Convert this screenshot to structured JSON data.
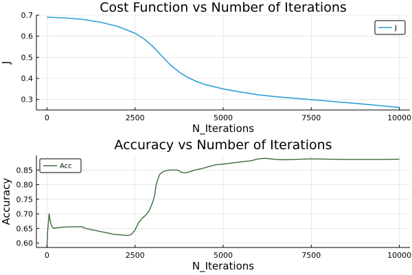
{
  "chart_data": [
    {
      "type": "line",
      "title": "Cost Function vs Number of Iterations",
      "xlabel": "N_Iterations",
      "ylabel": "J",
      "xlim": [
        -300,
        10300
      ],
      "ylim": [
        0.25,
        0.7
      ],
      "x_ticks": [
        0,
        2500,
        5000,
        7500,
        10000
      ],
      "x_tick_labels": [
        "0",
        "2500",
        "5000",
        "7500",
        "10000"
      ],
      "y_ticks": [
        0.3,
        0.4,
        0.5,
        0.6,
        0.7
      ],
      "y_tick_labels": [
        "0.3",
        "0.4",
        "0.5",
        "0.6",
        "0.7"
      ],
      "grid": true,
      "legend": "top-right",
      "series": [
        {
          "name": "J",
          "color": "#2c9fd6",
          "x": [
            0,
            500,
            1000,
            1500,
            2000,
            2500,
            2750,
            3000,
            3250,
            3500,
            3750,
            4000,
            4250,
            4500,
            5000,
            5500,
            6000,
            6500,
            7000,
            7500,
            8000,
            8500,
            9000,
            9500,
            10000
          ],
          "y": [
            0.69,
            0.687,
            0.68,
            0.667,
            0.647,
            0.614,
            0.588,
            0.552,
            0.508,
            0.464,
            0.43,
            0.404,
            0.385,
            0.37,
            0.35,
            0.335,
            0.322,
            0.313,
            0.306,
            0.299,
            0.292,
            0.285,
            0.278,
            0.27,
            0.262
          ]
        }
      ]
    },
    {
      "type": "line",
      "title": "Accuracy vs Number of Iterations",
      "xlabel": "N_Iterations",
      "ylabel": "Accuracy",
      "xlim": [
        -300,
        10300
      ],
      "ylim": [
        0.585,
        0.9
      ],
      "x_ticks": [
        0,
        2500,
        5000,
        7500,
        10000
      ],
      "x_tick_labels": [
        "0",
        "2500",
        "5000",
        "7500",
        "10000"
      ],
      "y_ticks": [
        0.6,
        0.65,
        0.7,
        0.75,
        0.8,
        0.85
      ],
      "y_tick_labels": [
        "0.60",
        "0.65",
        "0.70",
        "0.75",
        "0.80",
        "0.85"
      ],
      "grid": true,
      "legend": "top-left",
      "series": [
        {
          "name": "Acc",
          "color": "#3a6b3a",
          "x": [
            0,
            20,
            60,
            100,
            150,
            200,
            300,
            500,
            800,
            1000,
            1100,
            1300,
            1500,
            1700,
            1900,
            2100,
            2300,
            2400,
            2500,
            2600,
            2700,
            2800,
            2900,
            3000,
            3050,
            3100,
            3150,
            3200,
            3300,
            3400,
            3500,
            3700,
            3800,
            3900,
            4000,
            4200,
            4400,
            4600,
            4800,
            5000,
            5200,
            5400,
            5600,
            5800,
            6000,
            6200,
            6500,
            6700,
            7000,
            7500,
            8000,
            8500,
            9000,
            9500,
            10000
          ],
          "y": [
            0.585,
            0.64,
            0.7,
            0.67,
            0.655,
            0.65,
            0.653,
            0.655,
            0.656,
            0.656,
            0.65,
            0.645,
            0.64,
            0.635,
            0.63,
            0.628,
            0.626,
            0.63,
            0.645,
            0.67,
            0.685,
            0.695,
            0.71,
            0.74,
            0.76,
            0.8,
            0.82,
            0.835,
            0.845,
            0.848,
            0.85,
            0.85,
            0.843,
            0.84,
            0.842,
            0.85,
            0.855,
            0.862,
            0.868,
            0.87,
            0.873,
            0.876,
            0.879,
            0.882,
            0.888,
            0.89,
            0.886,
            0.885,
            0.886,
            0.888,
            0.887,
            0.886,
            0.886,
            0.886,
            0.887
          ]
        }
      ]
    }
  ]
}
